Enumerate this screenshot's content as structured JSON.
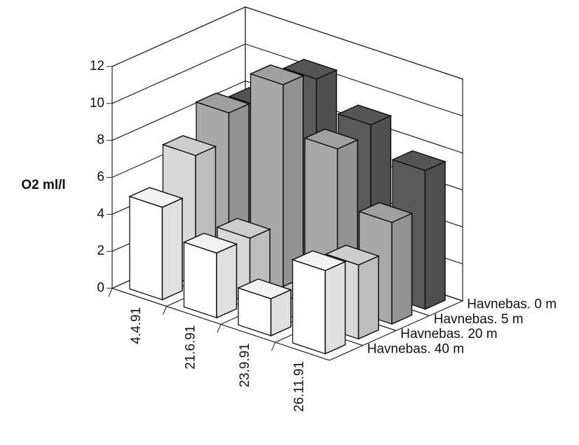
{
  "chart_data": {
    "type": "bar3d",
    "y_label": "O2 ml/l",
    "categories": [
      "4.4.91",
      "21.6.91",
      "23.9.91",
      "26.11.91"
    ],
    "series": [
      {
        "name": "Havnebas. 0 m",
        "color": "#5a5a5a",
        "values": [
          8,
          10.5,
          9,
          7.5
        ]
      },
      {
        "name": "Havnebas. 5 m",
        "color": "#a8a8a8",
        "values": [
          8.5,
          11,
          8.5,
          5.5
        ]
      },
      {
        "name": "Havnebas. 20 m",
        "color": "#d8d8d8",
        "values": [
          7,
          3.5,
          1,
          4
        ]
      },
      {
        "name": "Havnebas. 40 m",
        "color": "#ffffff",
        "values": [
          5,
          3.5,
          2,
          4.5
        ]
      }
    ],
    "ylim": [
      0,
      12
    ],
    "yticks": [
      0,
      2,
      4,
      6,
      8,
      10,
      12
    ],
    "grid": true
  }
}
